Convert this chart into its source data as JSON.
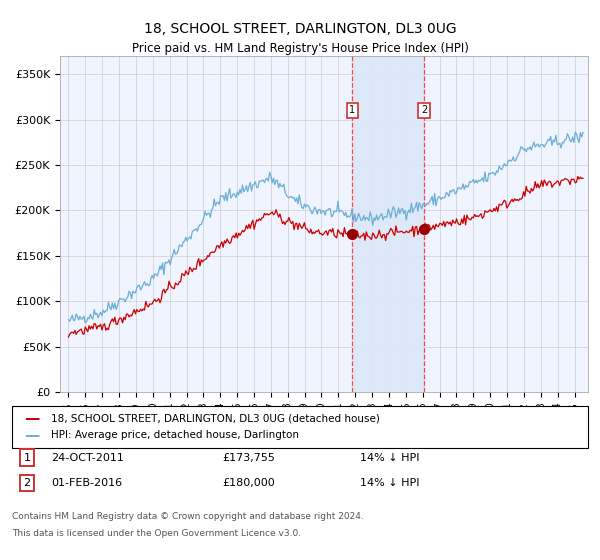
{
  "title": "18, SCHOOL STREET, DARLINGTON, DL3 0UG",
  "subtitle": "Price paid vs. HM Land Registry's House Price Index (HPI)",
  "ylabel_ticks": [
    "£0",
    "£50K",
    "£100K",
    "£150K",
    "£200K",
    "£250K",
    "£300K",
    "£350K"
  ],
  "ytick_values": [
    0,
    50000,
    100000,
    150000,
    200000,
    250000,
    300000,
    350000
  ],
  "ylim": [
    0,
    370000
  ],
  "hpi_color": "#6baed6",
  "price_color": "#cc0000",
  "marker1_x": 2011.82,
  "marker1_y": 173755,
  "marker2_x": 2016.08,
  "marker2_y": 180000,
  "marker1_label": "24-OCT-2011",
  "marker1_price": "£173,755",
  "marker1_hpi": "14% ↓ HPI",
  "marker2_label": "01-FEB-2016",
  "marker2_price": "£180,000",
  "marker2_hpi": "14% ↓ HPI",
  "legend_line1": "18, SCHOOL STREET, DARLINGTON, DL3 0UG (detached house)",
  "legend_line2": "HPI: Average price, detached house, Darlington",
  "footer1": "Contains HM Land Registry data © Crown copyright and database right 2024.",
  "footer2": "This data is licensed under the Open Government Licence v3.0.",
  "shade_x1": 2011.82,
  "shade_x2": 2016.08,
  "background_color": "#ffffff",
  "plot_bg_color": "#f0f4ff",
  "xlim_left": 1994.5,
  "xlim_right": 2025.8
}
